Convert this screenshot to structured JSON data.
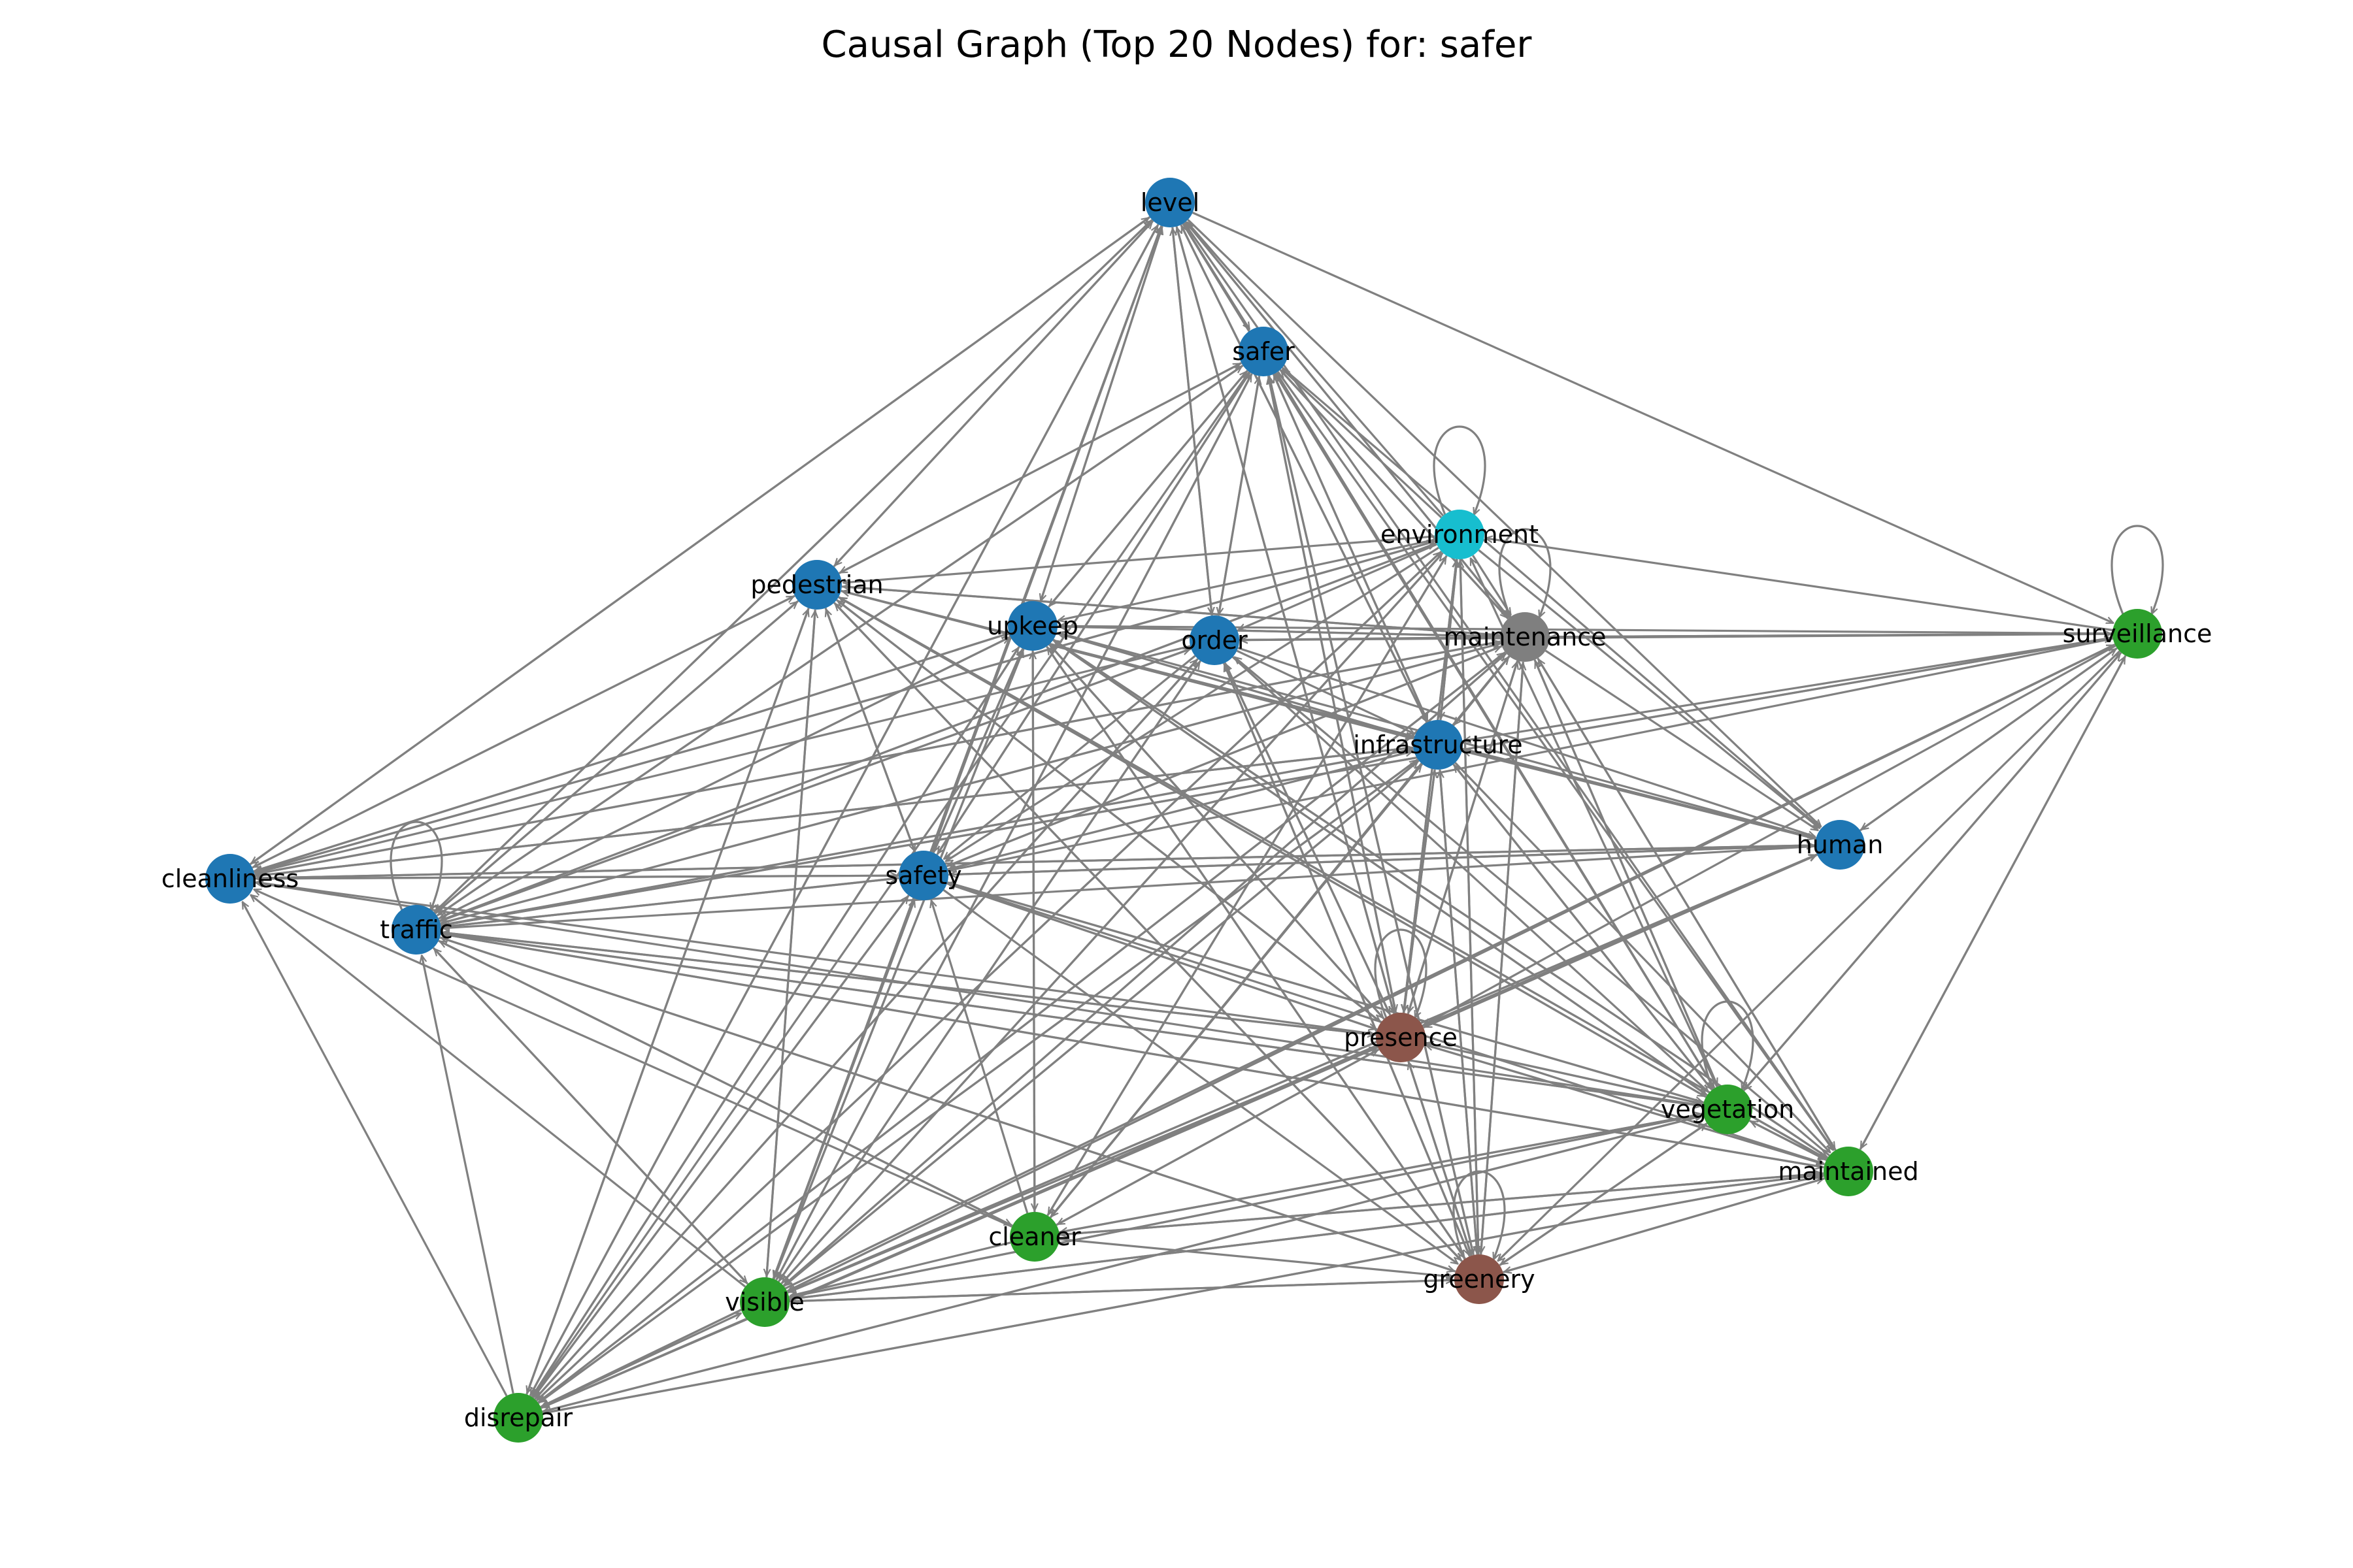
{
  "title": "Causal Graph (Top 20 Nodes) for: safer",
  "colors": {
    "edge": "#808080",
    "categories": {
      "blue": "#1f77b4",
      "green": "#2ca02c",
      "brown": "#8c564b",
      "gray": "#7f7f7f",
      "cyan": "#17becf"
    }
  },
  "nodes": [
    {
      "id": "level",
      "label": "level",
      "color": "blue"
    },
    {
      "id": "safer",
      "label": "safer",
      "color": "blue"
    },
    {
      "id": "environment",
      "label": "environment",
      "color": "cyan"
    },
    {
      "id": "pedestrian",
      "label": "pedestrian",
      "color": "blue"
    },
    {
      "id": "upkeep",
      "label": "upkeep",
      "color": "blue"
    },
    {
      "id": "order",
      "label": "order",
      "color": "blue"
    },
    {
      "id": "maintenance",
      "label": "maintenance",
      "color": "gray"
    },
    {
      "id": "surveillance",
      "label": "surveillance",
      "color": "green"
    },
    {
      "id": "infrastructure",
      "label": "infrastructure",
      "color": "blue"
    },
    {
      "id": "human",
      "label": "human",
      "color": "blue"
    },
    {
      "id": "cleanliness",
      "label": "cleanliness",
      "color": "blue"
    },
    {
      "id": "safety",
      "label": "safety",
      "color": "blue"
    },
    {
      "id": "traffic",
      "label": "traffic",
      "color": "blue"
    },
    {
      "id": "presence",
      "label": "presence",
      "color": "brown"
    },
    {
      "id": "vegetation",
      "label": "vegetation",
      "color": "green"
    },
    {
      "id": "maintained",
      "label": "maintained",
      "color": "green"
    },
    {
      "id": "cleaner",
      "label": "cleaner",
      "color": "green"
    },
    {
      "id": "greenery",
      "label": "greenery",
      "color": "brown"
    },
    {
      "id": "visible",
      "label": "visible",
      "color": "green"
    },
    {
      "id": "disrepair",
      "label": "disrepair",
      "color": "green"
    }
  ],
  "self_loops": [
    "environment",
    "surveillance",
    "traffic",
    "presence",
    "vegetation",
    "greenery",
    "maintenance"
  ],
  "edges": [
    [
      "level",
      "safer"
    ],
    [
      "level",
      "pedestrian"
    ],
    [
      "level",
      "upkeep"
    ],
    [
      "level",
      "order"
    ],
    [
      "level",
      "maintenance"
    ],
    [
      "level",
      "surveillance"
    ],
    [
      "level",
      "cleanliness"
    ],
    [
      "level",
      "traffic"
    ],
    [
      "level",
      "presence"
    ],
    [
      "level",
      "vegetation"
    ],
    [
      "level",
      "maintained"
    ],
    [
      "level",
      "visible"
    ],
    [
      "level",
      "disrepair"
    ],
    [
      "level",
      "infrastructure"
    ],
    [
      "level",
      "human"
    ],
    [
      "safer",
      "pedestrian"
    ],
    [
      "safer",
      "upkeep"
    ],
    [
      "safer",
      "order"
    ],
    [
      "safer",
      "maintenance"
    ],
    [
      "safer",
      "traffic"
    ],
    [
      "safer",
      "safety"
    ],
    [
      "safer",
      "presence"
    ],
    [
      "safer",
      "vegetation"
    ],
    [
      "safer",
      "greenery"
    ],
    [
      "safer",
      "visible"
    ],
    [
      "safer",
      "human"
    ],
    [
      "safer",
      "disrepair"
    ],
    [
      "safer",
      "infrastructure"
    ],
    [
      "safer",
      "maintained"
    ],
    [
      "environment",
      "level"
    ],
    [
      "environment",
      "safer"
    ],
    [
      "environment",
      "pedestrian"
    ],
    [
      "environment",
      "upkeep"
    ],
    [
      "environment",
      "order"
    ],
    [
      "environment",
      "maintenance"
    ],
    [
      "environment",
      "cleanliness"
    ],
    [
      "environment",
      "traffic"
    ],
    [
      "environment",
      "safety"
    ],
    [
      "environment",
      "visible"
    ],
    [
      "environment",
      "disrepair"
    ],
    [
      "environment",
      "cleaner"
    ],
    [
      "environment",
      "greenery"
    ],
    [
      "environment",
      "human"
    ],
    [
      "environment",
      "presence"
    ],
    [
      "environment",
      "infrastructure"
    ],
    [
      "pedestrian",
      "level"
    ],
    [
      "pedestrian",
      "safer"
    ],
    [
      "pedestrian",
      "cleanliness"
    ],
    [
      "pedestrian",
      "traffic"
    ],
    [
      "pedestrian",
      "maintenance"
    ],
    [
      "pedestrian",
      "infrastructure"
    ],
    [
      "pedestrian",
      "human"
    ],
    [
      "pedestrian",
      "vegetation"
    ],
    [
      "pedestrian",
      "greenery"
    ],
    [
      "pedestrian",
      "safety"
    ],
    [
      "pedestrian",
      "visible"
    ],
    [
      "pedestrian",
      "disrepair"
    ],
    [
      "pedestrian",
      "presence"
    ],
    [
      "pedestrian",
      "maintained"
    ],
    [
      "upkeep",
      "level"
    ],
    [
      "upkeep",
      "safer"
    ],
    [
      "upkeep",
      "maintenance"
    ],
    [
      "upkeep",
      "safety"
    ],
    [
      "upkeep",
      "visible"
    ],
    [
      "upkeep",
      "cleaner"
    ],
    [
      "upkeep",
      "presence"
    ],
    [
      "upkeep",
      "vegetation"
    ],
    [
      "upkeep",
      "maintained"
    ],
    [
      "upkeep",
      "traffic"
    ],
    [
      "upkeep",
      "cleanliness"
    ],
    [
      "upkeep",
      "infrastructure"
    ],
    [
      "upkeep",
      "disrepair"
    ],
    [
      "upkeep",
      "greenery"
    ],
    [
      "order",
      "level"
    ],
    [
      "order",
      "safer"
    ],
    [
      "order",
      "maintenance"
    ],
    [
      "order",
      "traffic"
    ],
    [
      "order",
      "cleanliness"
    ],
    [
      "order",
      "visible"
    ],
    [
      "order",
      "disrepair"
    ],
    [
      "order",
      "vegetation"
    ],
    [
      "order",
      "greenery"
    ],
    [
      "order",
      "safety"
    ],
    [
      "order",
      "presence"
    ],
    [
      "order",
      "human"
    ],
    [
      "order",
      "infrastructure"
    ],
    [
      "maintenance",
      "level"
    ],
    [
      "maintenance",
      "safer"
    ],
    [
      "maintenance",
      "surveillance"
    ],
    [
      "maintenance",
      "upkeep"
    ],
    [
      "maintenance",
      "order"
    ],
    [
      "maintenance",
      "pedestrian"
    ],
    [
      "maintenance",
      "traffic"
    ],
    [
      "maintenance",
      "cleanliness"
    ],
    [
      "maintenance",
      "safety"
    ],
    [
      "maintenance",
      "visible"
    ],
    [
      "maintenance",
      "disrepair"
    ],
    [
      "maintenance",
      "vegetation"
    ],
    [
      "maintenance",
      "maintained"
    ],
    [
      "maintenance",
      "greenery"
    ],
    [
      "maintenance",
      "presence"
    ],
    [
      "maintenance",
      "human"
    ],
    [
      "maintenance",
      "infrastructure"
    ],
    [
      "maintenance",
      "cleaner"
    ],
    [
      "surveillance",
      "maintenance"
    ],
    [
      "surveillance",
      "order"
    ],
    [
      "surveillance",
      "upkeep"
    ],
    [
      "surveillance",
      "environment"
    ],
    [
      "surveillance",
      "human"
    ],
    [
      "surveillance",
      "infrastructure"
    ],
    [
      "surveillance",
      "traffic"
    ],
    [
      "surveillance",
      "safety"
    ],
    [
      "surveillance",
      "visible"
    ],
    [
      "surveillance",
      "presence"
    ],
    [
      "surveillance",
      "vegetation"
    ],
    [
      "surveillance",
      "disrepair"
    ],
    [
      "surveillance",
      "greenery"
    ],
    [
      "surveillance",
      "maintained"
    ],
    [
      "infrastructure",
      "safer"
    ],
    [
      "infrastructure",
      "level"
    ],
    [
      "infrastructure",
      "pedestrian"
    ],
    [
      "infrastructure",
      "upkeep"
    ],
    [
      "infrastructure",
      "maintenance"
    ],
    [
      "infrastructure",
      "environment"
    ],
    [
      "infrastructure",
      "traffic"
    ],
    [
      "infrastructure",
      "cleanliness"
    ],
    [
      "infrastructure",
      "human"
    ],
    [
      "infrastructure",
      "safety"
    ],
    [
      "infrastructure",
      "visible"
    ],
    [
      "infrastructure",
      "disrepair"
    ],
    [
      "infrastructure",
      "presence"
    ],
    [
      "infrastructure",
      "vegetation"
    ],
    [
      "infrastructure",
      "greenery"
    ],
    [
      "infrastructure",
      "maintained"
    ],
    [
      "infrastructure",
      "cleaner"
    ],
    [
      "human",
      "traffic"
    ],
    [
      "human",
      "cleanliness"
    ],
    [
      "human",
      "safety"
    ],
    [
      "human",
      "upkeep"
    ],
    [
      "human",
      "pedestrian"
    ],
    [
      "human",
      "infrastructure"
    ],
    [
      "human",
      "presence"
    ],
    [
      "human",
      "visible"
    ],
    [
      "human",
      "disrepair"
    ],
    [
      "human",
      "surveillance"
    ],
    [
      "cleanliness",
      "level"
    ],
    [
      "cleanliness",
      "pedestrian"
    ],
    [
      "cleanliness",
      "maintenance"
    ],
    [
      "cleanliness",
      "human"
    ],
    [
      "cleanliness",
      "environment"
    ],
    [
      "cleanliness",
      "infrastructure"
    ],
    [
      "cleanliness",
      "safety"
    ],
    [
      "cleanliness",
      "upkeep"
    ],
    [
      "safety",
      "level"
    ],
    [
      "safety",
      "safer"
    ],
    [
      "safety",
      "upkeep"
    ],
    [
      "safety",
      "pedestrian"
    ],
    [
      "safety",
      "traffic"
    ],
    [
      "safety",
      "cleanliness"
    ],
    [
      "safety",
      "maintenance"
    ],
    [
      "safety",
      "infrastructure"
    ],
    [
      "safety",
      "human"
    ],
    [
      "safety",
      "presence"
    ],
    [
      "safety",
      "vegetation"
    ],
    [
      "safety",
      "visible"
    ],
    [
      "safety",
      "disrepair"
    ],
    [
      "safety",
      "maintained"
    ],
    [
      "safety",
      "greenery"
    ],
    [
      "traffic",
      "level"
    ],
    [
      "traffic",
      "safer"
    ],
    [
      "traffic",
      "pedestrian"
    ],
    [
      "traffic",
      "upkeep"
    ],
    [
      "traffic",
      "order"
    ],
    [
      "traffic",
      "maintenance"
    ],
    [
      "traffic",
      "environment"
    ],
    [
      "traffic",
      "infrastructure"
    ],
    [
      "traffic",
      "surveillance"
    ],
    [
      "traffic",
      "safety"
    ],
    [
      "traffic",
      "presence"
    ],
    [
      "traffic",
      "vegetation"
    ],
    [
      "traffic",
      "cleaner"
    ],
    [
      "traffic",
      "visible"
    ],
    [
      "traffic",
      "maintained"
    ],
    [
      "traffic",
      "greenery"
    ],
    [
      "presence",
      "safer"
    ],
    [
      "presence",
      "level"
    ],
    [
      "presence",
      "maintenance"
    ],
    [
      "presence",
      "environment"
    ],
    [
      "presence",
      "infrastructure"
    ],
    [
      "presence",
      "human"
    ],
    [
      "presence",
      "traffic"
    ],
    [
      "presence",
      "cleanliness"
    ],
    [
      "presence",
      "safety"
    ],
    [
      "presence",
      "pedestrian"
    ],
    [
      "presence",
      "upkeep"
    ],
    [
      "presence",
      "visible"
    ],
    [
      "presence",
      "disrepair"
    ],
    [
      "presence",
      "greenery"
    ],
    [
      "presence",
      "vegetation"
    ],
    [
      "presence",
      "maintained"
    ],
    [
      "presence",
      "cleaner"
    ],
    [
      "presence",
      "order"
    ],
    [
      "vegetation",
      "maintenance"
    ],
    [
      "vegetation",
      "environment"
    ],
    [
      "vegetation",
      "safer"
    ],
    [
      "vegetation",
      "presence"
    ],
    [
      "vegetation",
      "traffic"
    ],
    [
      "vegetation",
      "upkeep"
    ],
    [
      "vegetation",
      "pedestrian"
    ],
    [
      "vegetation",
      "visible"
    ],
    [
      "vegetation",
      "disrepair"
    ],
    [
      "vegetation",
      "cleaner"
    ],
    [
      "vegetation",
      "greenery"
    ],
    [
      "vegetation",
      "maintained"
    ],
    [
      "vegetation",
      "surveillance"
    ],
    [
      "vegetation",
      "infrastructure"
    ],
    [
      "vegetation",
      "safety"
    ],
    [
      "vegetation",
      "cleanliness"
    ],
    [
      "maintained",
      "maintenance"
    ],
    [
      "maintained",
      "surveillance"
    ],
    [
      "maintained",
      "upkeep"
    ],
    [
      "maintained",
      "presence"
    ],
    [
      "maintained",
      "vegetation"
    ],
    [
      "maintained",
      "visible"
    ],
    [
      "maintained",
      "cleaner"
    ],
    [
      "maintained",
      "greenery"
    ],
    [
      "maintained",
      "disrepair"
    ],
    [
      "maintained",
      "pedestrian"
    ],
    [
      "maintained",
      "order"
    ],
    [
      "maintained",
      "traffic"
    ],
    [
      "cleaner",
      "environment"
    ],
    [
      "cleaner",
      "maintenance"
    ],
    [
      "cleaner",
      "infrastructure"
    ],
    [
      "cleaner",
      "safety"
    ],
    [
      "cleaner",
      "upkeep"
    ],
    [
      "cleaner",
      "traffic"
    ],
    [
      "cleaner",
      "cleanliness"
    ],
    [
      "cleaner",
      "vegetation"
    ],
    [
      "cleaner",
      "maintained"
    ],
    [
      "cleaner",
      "presence"
    ],
    [
      "cleaner",
      "visible"
    ],
    [
      "cleaner",
      "greenery"
    ],
    [
      "greenery",
      "presence"
    ],
    [
      "greenery",
      "safer"
    ],
    [
      "greenery",
      "environment"
    ],
    [
      "greenery",
      "maintenance"
    ],
    [
      "greenery",
      "vegetation"
    ],
    [
      "greenery",
      "maintained"
    ],
    [
      "greenery",
      "traffic"
    ],
    [
      "greenery",
      "pedestrian"
    ],
    [
      "greenery",
      "upkeep"
    ],
    [
      "greenery",
      "visible"
    ],
    [
      "greenery",
      "infrastructure"
    ],
    [
      "greenery",
      "order"
    ],
    [
      "visible",
      "safer"
    ],
    [
      "visible",
      "level"
    ],
    [
      "visible",
      "pedestrian"
    ],
    [
      "visible",
      "upkeep"
    ],
    [
      "visible",
      "order"
    ],
    [
      "visible",
      "environment"
    ],
    [
      "visible",
      "maintenance"
    ],
    [
      "visible",
      "infrastructure"
    ],
    [
      "visible",
      "safety"
    ],
    [
      "visible",
      "traffic"
    ],
    [
      "visible",
      "cleanliness"
    ],
    [
      "visible",
      "presence"
    ],
    [
      "visible",
      "vegetation"
    ],
    [
      "visible",
      "maintained"
    ],
    [
      "visible",
      "greenery"
    ],
    [
      "visible",
      "human"
    ],
    [
      "visible",
      "surveillance"
    ],
    [
      "disrepair",
      "level"
    ],
    [
      "disrepair",
      "pedestrian"
    ],
    [
      "disrepair",
      "upkeep"
    ],
    [
      "disrepair",
      "order"
    ],
    [
      "disrepair",
      "environment"
    ],
    [
      "disrepair",
      "maintenance"
    ],
    [
      "disrepair",
      "infrastructure"
    ],
    [
      "disrepair",
      "safety"
    ],
    [
      "disrepair",
      "traffic"
    ],
    [
      "disrepair",
      "cleanliness"
    ],
    [
      "disrepair",
      "visible"
    ],
    [
      "disrepair",
      "presence"
    ],
    [
      "disrepair",
      "vegetation"
    ],
    [
      "disrepair",
      "maintained"
    ],
    [
      "disrepair",
      "surveillance"
    ]
  ]
}
